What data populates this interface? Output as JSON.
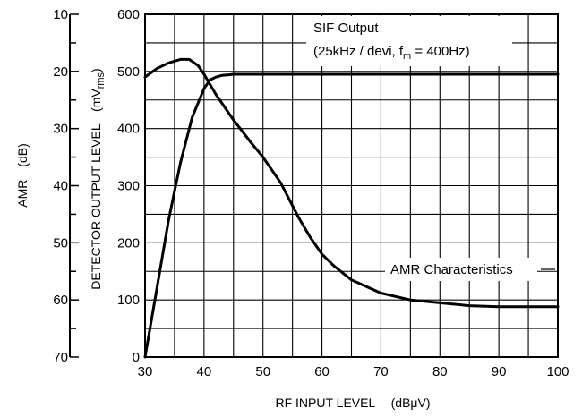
{
  "chart_data": {
    "type": "line",
    "xlabel": "RF INPUT LEVEL",
    "xlabel_unit": "(dBμV)",
    "ylabel_left": "AMR",
    "ylabel_left_unit": "(dB)",
    "ylabel_right": "DETECTOR OUTPUT LEVEL",
    "ylabel_right_unit": "(mVrms)",
    "xlim": [
      30,
      100
    ],
    "ylim": [
      0,
      600
    ],
    "amr_lim": [
      10,
      70
    ],
    "x_ticks": [
      "30",
      "40",
      "50",
      "60",
      "70",
      "80",
      "90",
      "100"
    ],
    "y_ticks": [
      "0",
      "100",
      "200",
      "300",
      "400",
      "500",
      "600"
    ],
    "amr_ticks": [
      "10",
      "20",
      "30",
      "40",
      "50",
      "60",
      "70"
    ],
    "grid": true,
    "annotations": {
      "sif_line1": "SIF Output",
      "sif_line2": "(25kHz / devi, f",
      "sif_sub": "m",
      "sif_line2_end": " = 400Hz)",
      "amr": "AMR Characteristics"
    },
    "series": [
      {
        "key": "sif",
        "x": [
          30,
          32,
          34,
          36,
          38,
          40,
          41,
          42,
          43,
          44,
          45,
          46,
          50,
          60,
          70,
          80,
          90,
          100
        ],
        "values": [
          0,
          120,
          240,
          340,
          420,
          470,
          485,
          490,
          493,
          494,
          495,
          495,
          495,
          495,
          495,
          495,
          495,
          495
        ]
      },
      {
        "key": "amr",
        "x": [
          30,
          32,
          34,
          36,
          37.5,
          39,
          40,
          42,
          45,
          48,
          50,
          53,
          56,
          58,
          60,
          62,
          65,
          70,
          75,
          80,
          85,
          90,
          95,
          100
        ],
        "values": [
          490,
          505,
          515,
          521,
          521,
          510,
          495,
          460,
          415,
          375,
          350,
          305,
          245,
          210,
          180,
          160,
          135,
          112,
          100,
          95,
          90,
          88,
          88,
          88
        ]
      }
    ]
  }
}
